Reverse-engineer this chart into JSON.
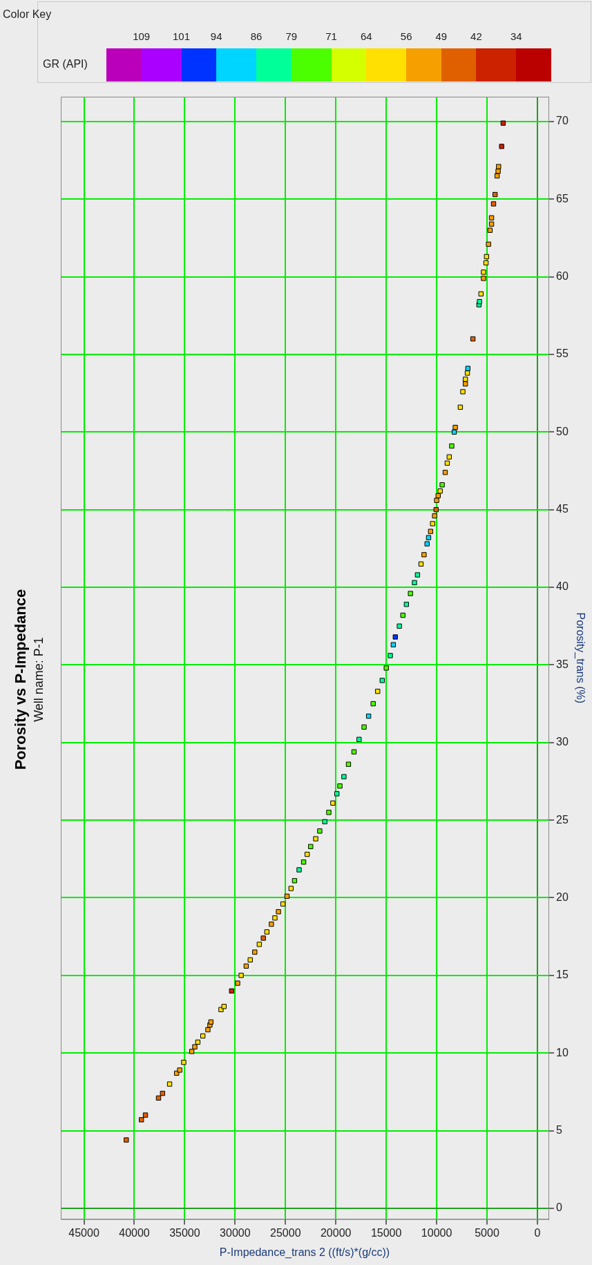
{
  "chart_data": {
    "type": "scatter",
    "title": "Porosity vs P-Impedance",
    "subtitle": "Well name: P-1",
    "xlabel": "P-Impedance_trans 2 ((ft/s)*(g/cc))",
    "ylabel": "Porosity_trans (%)",
    "legend_title": "Color Key",
    "clabel": "GR (API)",
    "x": [
      40800,
      39300,
      38900,
      37600,
      37200,
      36500,
      35800,
      35500,
      35100,
      34300,
      34000,
      33700,
      33200,
      32700,
      32500,
      32400,
      31400,
      31100,
      30350,
      29750,
      29400,
      28900,
      28500,
      28050,
      27600,
      27200,
      26850,
      26400,
      26050,
      25700,
      25250,
      24850,
      24450,
      24100,
      23650,
      23200,
      22850,
      22500,
      22000,
      21600,
      21100,
      20700,
      20300,
      19900,
      19600,
      19200,
      18750,
      18200,
      17700,
      17200,
      16750,
      16300,
      15850,
      15400,
      15000,
      14600,
      14300,
      14100,
      13700,
      13350,
      13000,
      12600,
      12200,
      11900,
      11550,
      11250,
      10950,
      10800,
      10600,
      10400,
      10200,
      10050,
      10000,
      9850,
      9650,
      9450,
      9150,
      8950,
      8750,
      8500,
      8250,
      8150,
      7650,
      7400,
      7150,
      7150,
      6950,
      6900,
      6400,
      5800,
      5750,
      5600,
      5350,
      5350,
      5100,
      5050,
      4850,
      4700,
      4550,
      4550,
      4350,
      4200,
      4000,
      3900,
      3850,
      3550,
      3400
    ],
    "values": [
      4.4,
      5.7,
      6.0,
      7.1,
      7.4,
      8.0,
      8.7,
      8.9,
      9.4,
      10.1,
      10.4,
      10.7,
      11.1,
      11.5,
      11.8,
      12.0,
      12.8,
      13.0,
      14.0,
      14.5,
      15.0,
      15.6,
      16.0,
      16.5,
      17.0,
      17.4,
      17.8,
      18.3,
      18.7,
      19.1,
      19.6,
      20.1,
      20.6,
      21.1,
      21.8,
      22.3,
      22.8,
      23.3,
      23.8,
      24.3,
      24.9,
      25.5,
      26.1,
      26.7,
      27.2,
      27.8,
      28.6,
      29.4,
      30.2,
      31.0,
      31.7,
      32.5,
      33.3,
      34.0,
      34.8,
      35.6,
      36.3,
      36.8,
      37.5,
      38.2,
      38.9,
      39.6,
      40.3,
      40.8,
      41.5,
      42.1,
      42.8,
      43.2,
      43.6,
      44.1,
      44.6,
      45.0,
      45.6,
      45.9,
      46.2,
      46.6,
      47.4,
      48.0,
      48.4,
      49.1,
      50.0,
      50.3,
      51.6,
      52.6,
      53.1,
      53.4,
      53.8,
      54.1,
      56.0,
      58.2,
      58.4,
      58.9,
      59.9,
      60.3,
      60.9,
      61.3,
      62.1,
      63.0,
      63.4,
      63.8,
      64.7,
      65.3,
      66.5,
      66.8,
      67.1,
      68.4,
      69.9
    ],
    "cvalues": [
      45,
      45,
      45,
      45,
      45,
      60,
      52,
      52,
      60,
      52,
      52,
      60,
      60,
      52,
      52,
      52,
      60,
      60,
      38,
      52,
      60,
      52,
      60,
      52,
      60,
      45,
      60,
      52,
      60,
      52,
      60,
      52,
      60,
      75,
      82,
      75,
      60,
      75,
      60,
      75,
      82,
      75,
      60,
      82,
      75,
      82,
      75,
      75,
      82,
      75,
      90,
      75,
      60,
      82,
      75,
      82,
      90,
      97,
      82,
      75,
      82,
      75,
      82,
      82,
      60,
      52,
      90,
      90,
      52,
      60,
      52,
      45,
      52,
      52,
      60,
      75,
      52,
      60,
      60,
      75,
      90,
      52,
      60,
      60,
      52,
      60,
      60,
      90,
      45,
      82,
      82,
      60,
      52,
      60,
      60,
      60,
      52,
      52,
      52,
      52,
      45,
      45,
      52,
      52,
      52,
      38,
      38
    ],
    "cticks": [
      34,
      42,
      49,
      56,
      64,
      71,
      79,
      86,
      94,
      101,
      109
    ],
    "clim": [
      27,
      116
    ],
    "xlim": [
      47300,
      -1100
    ],
    "ylim": [
      -0.7,
      71.6
    ],
    "xticks": [
      0,
      5000,
      10000,
      15000,
      20000,
      25000,
      30000,
      35000,
      40000,
      45000
    ],
    "yticks": [
      0,
      5,
      10,
      15,
      20,
      25,
      30,
      35,
      40,
      45,
      50,
      55,
      60,
      65,
      70
    ],
    "grid": true,
    "marker": "square"
  }
}
